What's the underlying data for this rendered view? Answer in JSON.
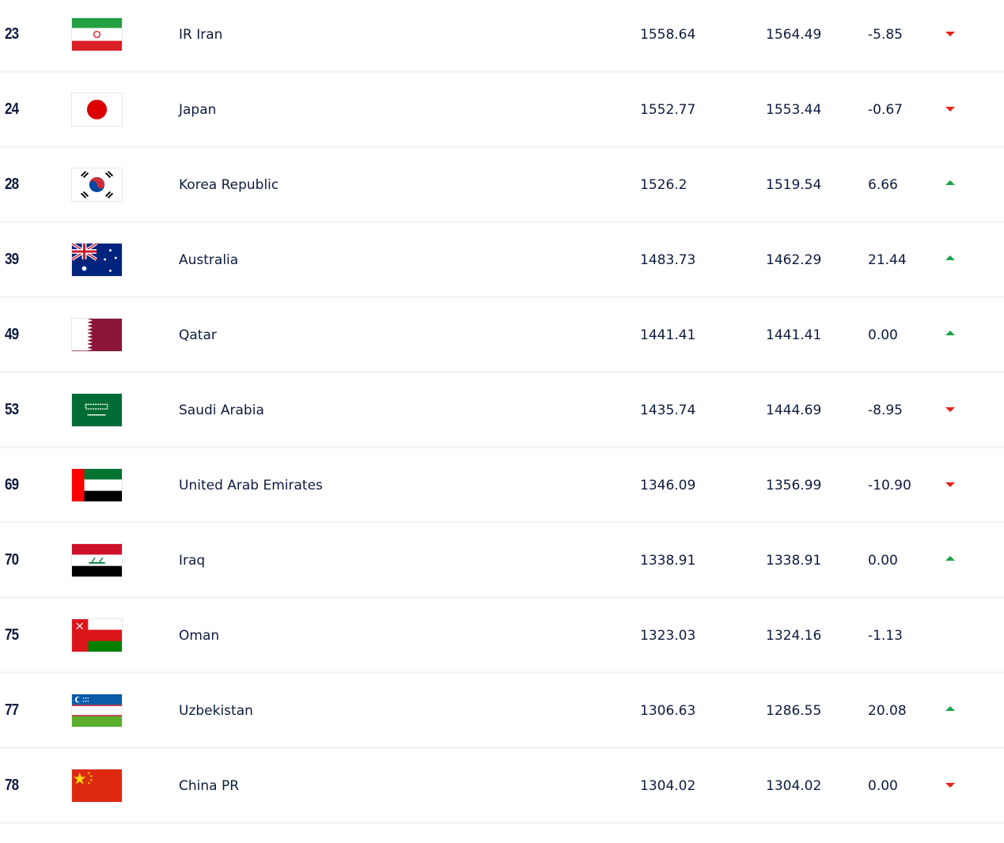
{
  "colors": {
    "up": "#1aa34a",
    "down": "#e2231a",
    "text": "#0d1b3e"
  },
  "rows": [
    {
      "rank": "23",
      "flag": "iran-flag",
      "name": "IR Iran",
      "points": "1558.64",
      "previous": "1564.49",
      "change": "-5.85",
      "trend": "down"
    },
    {
      "rank": "24",
      "flag": "japan-flag",
      "name": "Japan",
      "points": "1552.77",
      "previous": "1553.44",
      "change": "-0.67",
      "trend": "down"
    },
    {
      "rank": "28",
      "flag": "korea-flag",
      "name": "Korea Republic",
      "points": "1526.2",
      "previous": "1519.54",
      "change": "6.66",
      "trend": "up"
    },
    {
      "rank": "39",
      "flag": "australia-flag",
      "name": "Australia",
      "points": "1483.73",
      "previous": "1462.29",
      "change": "21.44",
      "trend": "up"
    },
    {
      "rank": "49",
      "flag": "qatar-flag",
      "name": "Qatar",
      "points": "1441.41",
      "previous": "1441.41",
      "change": "0.00",
      "trend": "up"
    },
    {
      "rank": "53",
      "flag": "saudi-arabia-flag",
      "name": "Saudi Arabia",
      "points": "1435.74",
      "previous": "1444.69",
      "change": "-8.95",
      "trend": "down"
    },
    {
      "rank": "69",
      "flag": "uae-flag",
      "name": "United Arab Emirates",
      "points": "1346.09",
      "previous": "1356.99",
      "change": "-10.90",
      "trend": "down"
    },
    {
      "rank": "70",
      "flag": "iraq-flag",
      "name": "Iraq",
      "points": "1338.91",
      "previous": "1338.91",
      "change": "0.00",
      "trend": "up"
    },
    {
      "rank": "75",
      "flag": "oman-flag",
      "name": "Oman",
      "points": "1323.03",
      "previous": "1324.16",
      "change": "-1.13",
      "trend": "none"
    },
    {
      "rank": "77",
      "flag": "uzbekistan-flag",
      "name": "Uzbekistan",
      "points": "1306.63",
      "previous": "1286.55",
      "change": "20.08",
      "trend": "up"
    },
    {
      "rank": "78",
      "flag": "china-flag",
      "name": "China PR",
      "points": "1304.02",
      "previous": "1304.02",
      "change": "0.00",
      "trend": "down"
    }
  ]
}
